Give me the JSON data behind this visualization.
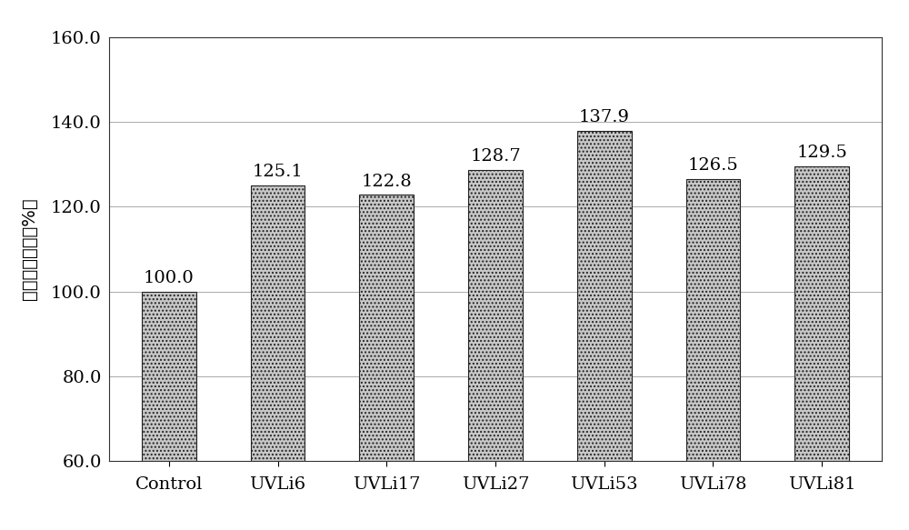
{
  "categories": [
    "Control",
    "UVLi6",
    "UVLi17",
    "UVLi27",
    "UVLi53",
    "UVLi78",
    "UVLi81"
  ],
  "values": [
    100.0,
    125.1,
    122.8,
    128.7,
    137.9,
    126.5,
    129.5
  ],
  "bar_color": "#c8c8c8",
  "bar_edge_color": "#222222",
  "bar_hatch": "....",
  "ylabel_chars": [
    "蔗",
    "果",
    "三",
    "糖",
    "含",
    "量",
    "（",
    "%",
    "）"
  ],
  "ylim": [
    60.0,
    160.0
  ],
  "yticks": [
    60.0,
    80.0,
    100.0,
    120.0,
    140.0,
    160.0
  ],
  "tick_fontsize": 14,
  "value_fontsize": 14,
  "ylabel_fontsize": 14,
  "xlabel_fontsize": 14,
  "background_color": "#ffffff",
  "grid_color": "#aaaaaa",
  "bar_width": 0.5
}
